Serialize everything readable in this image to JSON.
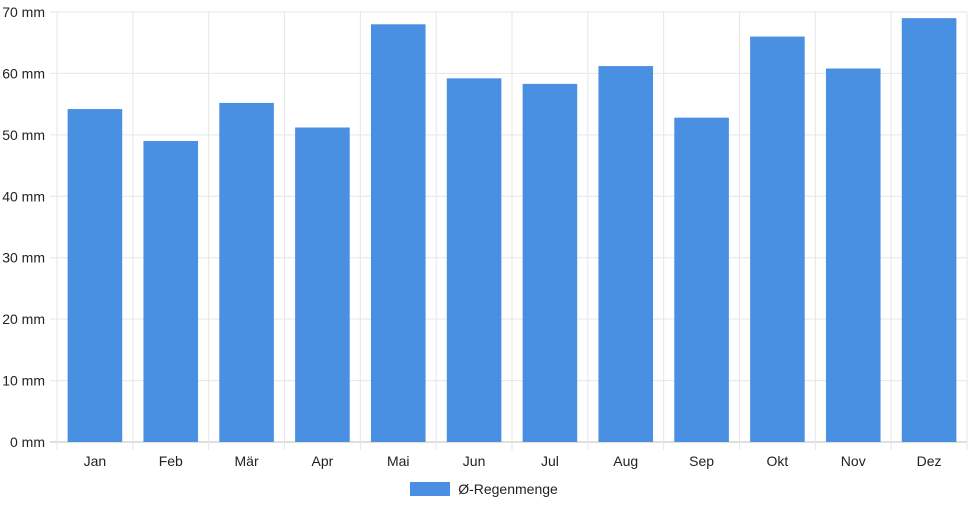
{
  "chart_data": {
    "type": "bar",
    "categories": [
      "Jan",
      "Feb",
      "Mär",
      "Apr",
      "Mai",
      "Jun",
      "Jul",
      "Aug",
      "Sep",
      "Okt",
      "Nov",
      "Dez"
    ],
    "series": [
      {
        "name": "Ø-Regenmenge",
        "values": [
          54.2,
          49,
          55.2,
          51.2,
          68,
          59.2,
          58.3,
          61.2,
          52.8,
          66,
          60.8,
          69
        ]
      }
    ],
    "y_ticks": [
      "0 mm",
      "10 mm",
      "20 mm",
      "30 mm",
      "40 mm",
      "50 mm",
      "60 mm",
      "70 mm"
    ],
    "ylim": [
      0,
      70
    ],
    "unit": "mm",
    "grid": true,
    "legend_position": "bottom",
    "colors": {
      "bar": "#4a90e2",
      "grid": "#e6e6e6",
      "axis": "#bfbfbf"
    }
  }
}
